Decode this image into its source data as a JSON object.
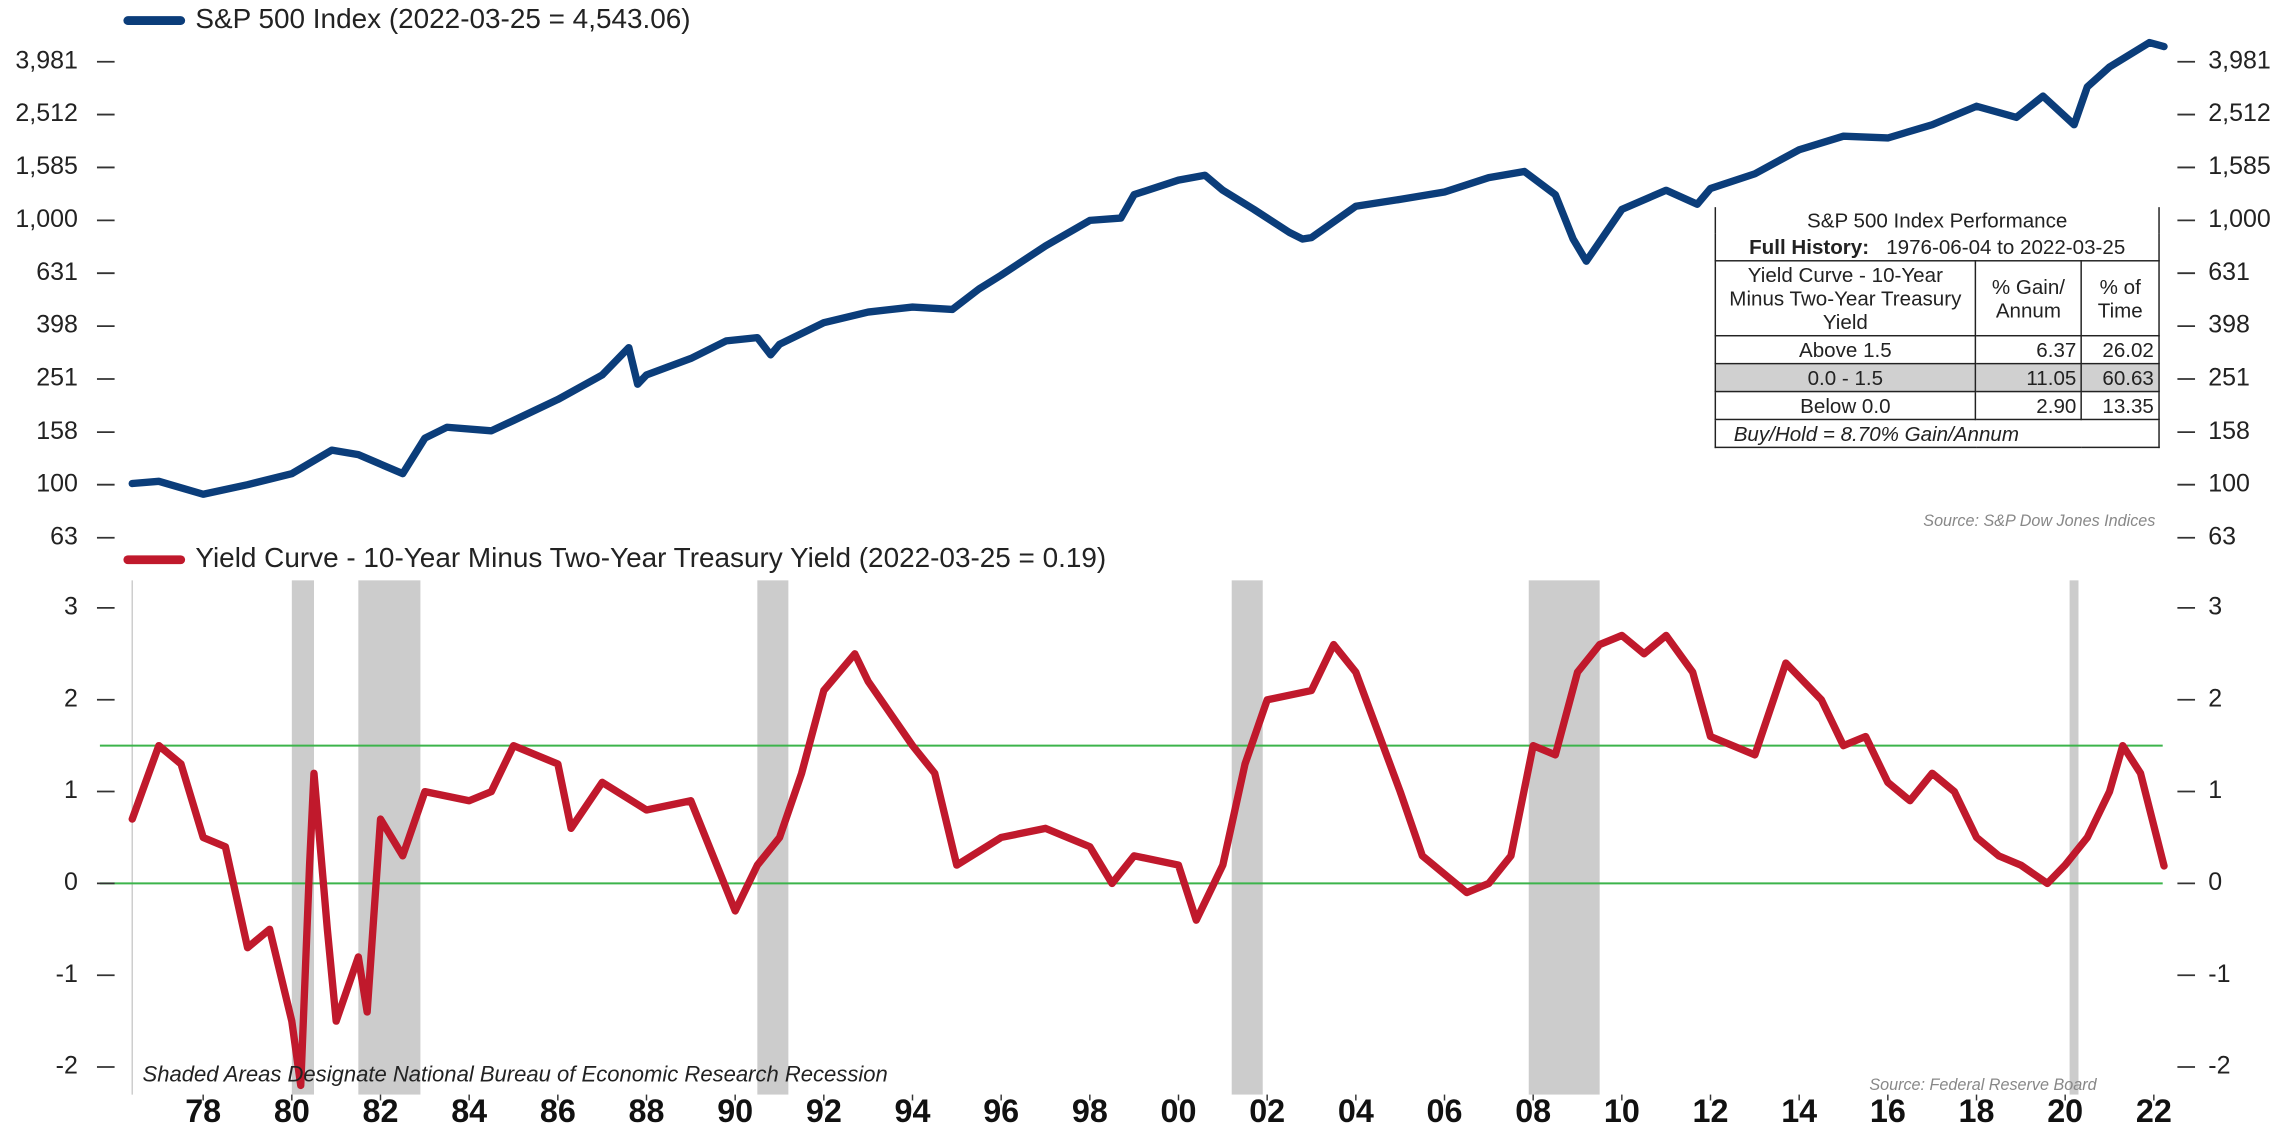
{
  "chart_data": [
    {
      "type": "line",
      "log_y": true,
      "x": [
        1976.4,
        1977,
        1978,
        1979,
        1980,
        1980.9,
        1981.5,
        1982.5,
        1983,
        1983.5,
        1984.5,
        1985,
        1986,
        1987,
        1987.6,
        1987.8,
        1988,
        1989,
        1989.8,
        1990.5,
        1990.8,
        1991,
        1992,
        1993,
        1994,
        1994.9,
        1995.5,
        1996,
        1997,
        1998,
        1998.7,
        1999,
        2000,
        2000.6,
        2001,
        2001.7,
        2002.5,
        2002.8,
        2003,
        2004,
        2005,
        2006,
        2007,
        2007.8,
        2008.5,
        2008.9,
        2009.2,
        2010,
        2011,
        2011.7,
        2012,
        2013,
        2014,
        2015,
        2016,
        2017,
        2018,
        2018.9,
        2019.5,
        2020.2,
        2020.5,
        2021,
        2021.9,
        2022.23
      ],
      "series": [
        {
          "name": "S&P 500 Index (2022-03-25 = 4,543.06)",
          "color": "#0b3d7a",
          "values": [
            101,
            103,
            92,
            100,
            110,
            135,
            130,
            110,
            150,
            165,
            160,
            175,
            210,
            260,
            330,
            240,
            260,
            300,
            350,
            360,
            310,
            340,
            410,
            450,
            470,
            460,
            550,
            620,
            800,
            1000,
            1020,
            1250,
            1420,
            1480,
            1300,
            1100,
            900,
            850,
            860,
            1130,
            1200,
            1280,
            1450,
            1530,
            1250,
            850,
            700,
            1100,
            1300,
            1150,
            1320,
            1500,
            1850,
            2080,
            2050,
            2300,
            2700,
            2450,
            2950,
            2300,
            3200,
            3800,
            4700,
            4543
          ]
        }
      ],
      "xlim": [
        1976.4,
        2022.2
      ],
      "ylim": [
        63,
        6310
      ],
      "yticks": [
        63,
        100,
        158,
        251,
        398,
        631,
        {
          "value": 1000,
          "label": "1,000"
        },
        {
          "value": 1585,
          "label": "1,585"
        },
        {
          "value": 2512,
          "label": "2,512"
        },
        {
          "value": 3981,
          "label": "3,981"
        }
      ],
      "table": {
        "title": "S&P 500 Index Performance",
        "subtitle_label": "Full History:",
        "subtitle": "1976-06-04 to 2022-03-25",
        "headers": [
          "Yield Curve - 10-Year Minus Two-Year Treasury Yield",
          "% Gain/ Annum",
          "% of Time"
        ],
        "rows": [
          [
            "Above 1.5",
            "6.37",
            "26.02"
          ],
          [
            "0.0 - 1.5",
            "11.05",
            "60.63"
          ],
          [
            "Below 0.0",
            "2.90",
            "13.35"
          ]
        ],
        "footer": "Buy/Hold = 8.70% Gain/Annum"
      },
      "source": "Source: S&P Dow Jones Indices"
    },
    {
      "type": "line",
      "x": [
        1976.4,
        1977,
        1977.5,
        1978,
        1978.5,
        1979,
        1979.5,
        1980,
        1980.2,
        1980.4,
        1980.5,
        1980.8,
        1981,
        1981.5,
        1981.7,
        1982,
        1982.5,
        1983,
        1984,
        1984.5,
        1985,
        1986,
        1986.3,
        1987,
        1988,
        1989,
        1989.5,
        1990,
        1990.5,
        1991,
        1991.5,
        1992,
        1992.7,
        1993,
        1994,
        1994.5,
        1995,
        1996,
        1997,
        1998,
        1998.5,
        1999,
        2000,
        2000.4,
        2001,
        2001.5,
        2002,
        2003,
        2003.5,
        2004,
        2005,
        2005.5,
        2006.5,
        2007,
        2007.5,
        2008,
        2008.5,
        2009,
        2009.5,
        2010,
        2010.5,
        2011,
        2011.6,
        2012,
        2012.5,
        2013,
        2013.7,
        2014.5,
        2015,
        2015.5,
        2016,
        2016.5,
        2017,
        2017.5,
        2018,
        2018.5,
        2019,
        2019.6,
        2020,
        2020.5,
        2021,
        2021.3,
        2021.7,
        2022.23
      ],
      "series": [
        {
          "name": "Yield Curve - 10-Year Minus Two-Year Treasury Yield (2022-03-25 = 0.19)",
          "color": "#c0192c",
          "values": [
            0.7,
            1.5,
            1.3,
            0.5,
            0.4,
            -0.7,
            -0.5,
            -1.5,
            -2.2,
            0.2,
            1.2,
            -0.5,
            -1.5,
            -0.8,
            -1.4,
            0.7,
            0.3,
            1.0,
            0.9,
            1.0,
            1.5,
            1.3,
            0.6,
            1.1,
            0.8,
            0.9,
            0.3,
            -0.3,
            0.2,
            0.5,
            1.2,
            2.1,
            2.5,
            2.2,
            1.5,
            1.2,
            0.2,
            0.5,
            0.6,
            0.4,
            0.0,
            0.3,
            0.2,
            -0.4,
            0.2,
            1.3,
            2.0,
            2.1,
            2.6,
            2.3,
            1.0,
            0.3,
            -0.1,
            0.0,
            0.3,
            1.5,
            1.4,
            2.3,
            2.6,
            2.7,
            2.5,
            2.7,
            2.3,
            1.6,
            1.5,
            1.4,
            2.4,
            2.0,
            1.5,
            1.6,
            1.1,
            0.9,
            1.2,
            1.0,
            0.5,
            0.3,
            0.2,
            0.0,
            0.2,
            0.5,
            1.0,
            1.5,
            1.2,
            0.19
          ]
        }
      ],
      "xlim": [
        1976.4,
        2022.2
      ],
      "ylim": [
        -2.3,
        3.3
      ],
      "yticks": [
        -2,
        -1,
        0,
        1,
        2,
        3
      ],
      "xticks": [
        {
          "value": 1978,
          "label": "78"
        },
        {
          "value": 1980,
          "label": "80"
        },
        {
          "value": 1982,
          "label": "82"
        },
        {
          "value": 1984,
          "label": "84"
        },
        {
          "value": 1986,
          "label": "86"
        },
        {
          "value": 1988,
          "label": "88"
        },
        {
          "value": 1990,
          "label": "90"
        },
        {
          "value": 1992,
          "label": "92"
        },
        {
          "value": 1994,
          "label": "94"
        },
        {
          "value": 1996,
          "label": "96"
        },
        {
          "value": 1998,
          "label": "98"
        },
        {
          "value": 2000,
          "label": "00"
        },
        {
          "value": 2002,
          "label": "02"
        },
        {
          "value": 2004,
          "label": "04"
        },
        {
          "value": 2006,
          "label": "06"
        },
        {
          "value": 2008,
          "label": "08"
        },
        {
          "value": 2010,
          "label": "10"
        },
        {
          "value": 2012,
          "label": "12"
        },
        {
          "value": 2014,
          "label": "14"
        },
        {
          "value": 2016,
          "label": "16"
        },
        {
          "value": 2018,
          "label": "18"
        },
        {
          "value": 2020,
          "label": "20"
        },
        {
          "value": 2022,
          "label": "22"
        }
      ],
      "reference_lines": [
        1.5,
        0
      ],
      "reference_color": "#3cb44b",
      "shaded": [
        [
          1980.0,
          1980.5
        ],
        [
          1981.5,
          1982.9
        ],
        [
          1990.5,
          1991.2
        ],
        [
          2001.2,
          2001.9
        ],
        [
          2007.9,
          2009.5
        ],
        [
          2020.1,
          2020.3
        ]
      ],
      "shade_color": "#cccccc",
      "annotation": "Shaded Areas Designate National Bureau of Economic Research Recession",
      "source": "Source: Federal Reserve Board"
    }
  ]
}
